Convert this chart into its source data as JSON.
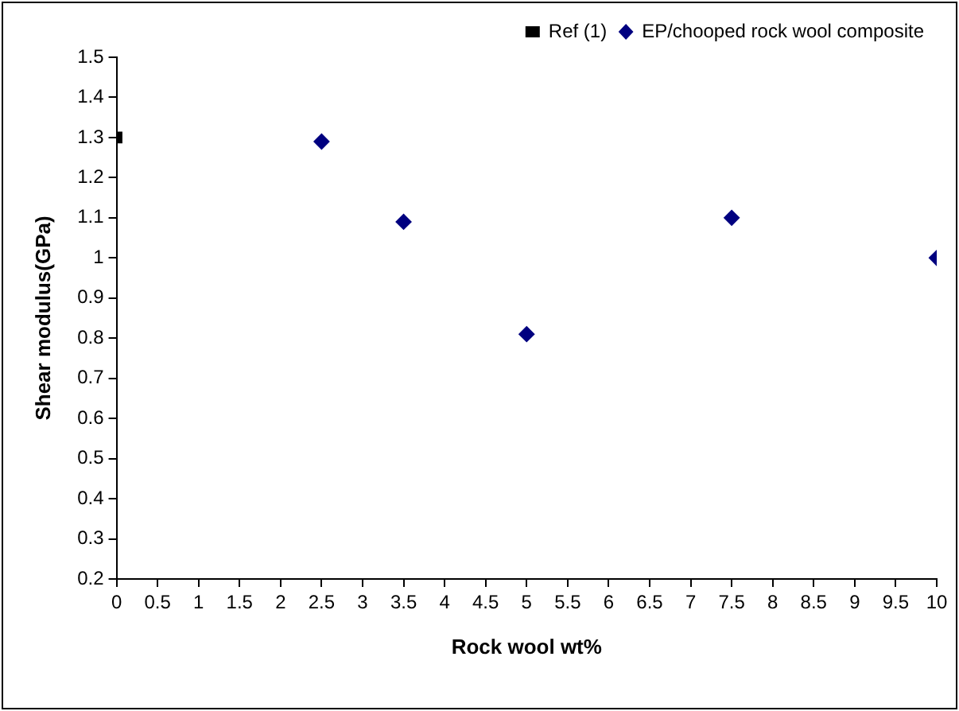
{
  "chart_data": {
    "type": "scatter",
    "xlabel": "Rock wool wt%",
    "ylabel": "Shear modulus(GPa)",
    "xlim": [
      0,
      10
    ],
    "xticks": [
      0,
      0.5,
      1,
      1.5,
      2,
      2.5,
      3,
      3.5,
      4,
      4.5,
      5,
      5.5,
      6,
      6.5,
      7,
      7.5,
      8,
      8.5,
      9,
      9.5,
      10
    ],
    "ylim": [
      0.2,
      1.5
    ],
    "yticks": [
      0.2,
      0.3,
      0.4,
      0.5,
      0.6,
      0.7,
      0.8,
      0.9,
      1,
      1.1,
      1.2,
      1.3,
      1.4,
      1.5
    ],
    "grid": false,
    "legend": "top right",
    "series": [
      {
        "name": "Ref (1)",
        "color": "#000000",
        "marker": "square",
        "x": [
          0
        ],
        "values": [
          1.3
        ]
      },
      {
        "name": "EP/chooped rock wool composite",
        "color": "#000080",
        "marker": "diamond",
        "x": [
          2.5,
          3.5,
          5,
          7.5,
          10
        ],
        "values": [
          1.29,
          1.09,
          0.81,
          1.1,
          1.0
        ]
      }
    ]
  }
}
